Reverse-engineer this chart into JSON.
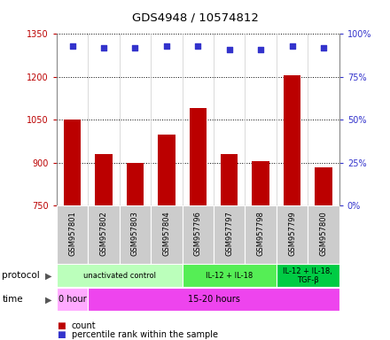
{
  "title": "GDS4948 / 10574812",
  "samples": [
    "GSM957801",
    "GSM957802",
    "GSM957803",
    "GSM957804",
    "GSM957796",
    "GSM957797",
    "GSM957798",
    "GSM957799",
    "GSM957800"
  ],
  "counts": [
    1050,
    930,
    900,
    1000,
    1090,
    930,
    905,
    1205,
    885
  ],
  "percentile_ranks": [
    93,
    92,
    92,
    93,
    93,
    91,
    91,
    93,
    92
  ],
  "ylim_left": [
    750,
    1350
  ],
  "ylim_right": [
    0,
    100
  ],
  "yticks_left": [
    750,
    900,
    1050,
    1200,
    1350
  ],
  "yticks_right": [
    0,
    25,
    50,
    75,
    100
  ],
  "bar_color": "#bb0000",
  "dot_color": "#3333cc",
  "bar_width": 0.55,
  "protocols": [
    {
      "label": "unactivated control",
      "start": 0,
      "end": 4,
      "color": "#bbffbb"
    },
    {
      "label": "IL-12 + IL-18",
      "start": 4,
      "end": 7,
      "color": "#55ee55"
    },
    {
      "label": "IL-12 + IL-18,\nTGF-β",
      "start": 7,
      "end": 9,
      "color": "#00cc44"
    }
  ],
  "times": [
    {
      "label": "0 hour",
      "start": 0,
      "end": 1,
      "color": "#ffaaff"
    },
    {
      "label": "15-20 hours",
      "start": 1,
      "end": 9,
      "color": "#ee44ee"
    }
  ],
  "grid_color": "#888888",
  "background_color": "#ffffff",
  "label_area_color": "#cccccc",
  "legend_count_color": "#bb0000",
  "legend_dot_color": "#3333cc"
}
